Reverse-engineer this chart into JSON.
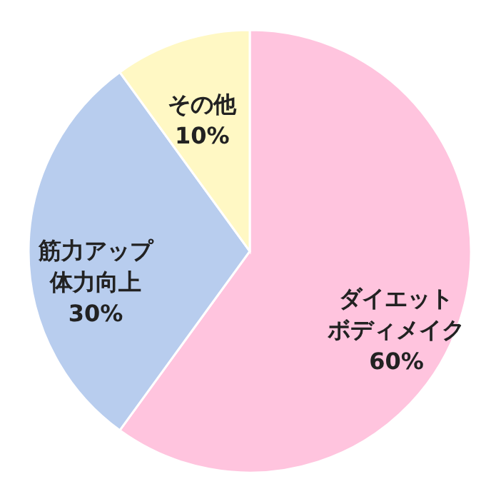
{
  "chart_data": {
    "type": "pie",
    "categories": [
      "ダイエットボディメイク",
      "筋力アップ体力向上",
      "その他"
    ],
    "values": [
      60,
      30,
      10
    ],
    "colors": [
      "#ffc4de",
      "#b8cdee",
      "#fff8c4"
    ],
    "value_labels": [
      "60%",
      "30%",
      "10%"
    ],
    "legend": false
  }
}
